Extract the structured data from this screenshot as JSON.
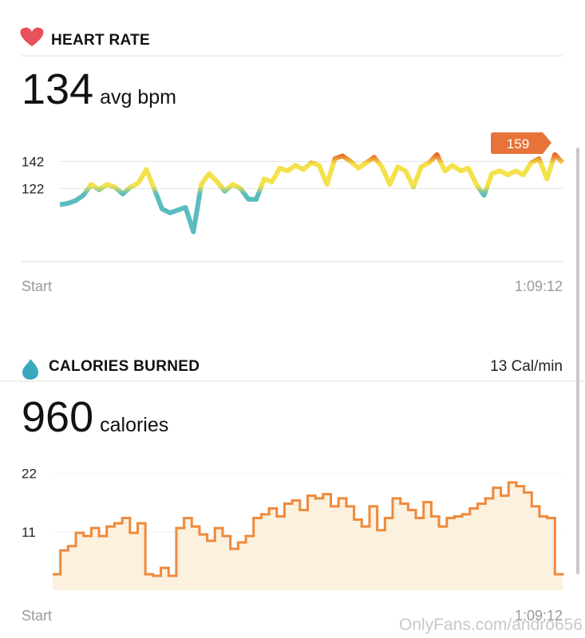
{
  "chart_data": [
    {
      "type": "line",
      "title": "HEART RATE",
      "summary_value": "134",
      "summary_unit": "avg bpm",
      "max_label": "159",
      "x_start_label": "Start",
      "x_end_label": "1:09:12",
      "values": [
        110,
        111,
        113,
        117,
        125,
        121,
        125,
        123,
        118,
        123,
        126,
        136,
        122,
        107,
        104,
        106,
        108,
        90,
        125,
        133,
        127,
        120,
        125,
        122,
        114,
        114,
        129,
        127,
        137,
        135,
        139,
        136,
        141,
        139,
        125,
        144,
        146,
        142,
        137,
        141,
        145,
        138,
        125,
        138,
        135,
        123,
        138,
        141,
        147,
        135,
        139,
        135,
        137,
        125,
        117,
        133,
        135,
        132,
        135,
        132,
        141,
        144,
        129,
        147,
        141
      ],
      "ylim": [
        68,
        164
      ],
      "yticks": [
        142,
        122
      ],
      "color_scale": [
        {
          "value": 100,
          "color": "#5bbcc0"
        },
        {
          "value": 118,
          "color": "#5bbcc0"
        },
        {
          "value": 124,
          "color": "#f3e24a"
        },
        {
          "value": 140,
          "color": "#f3e24a"
        },
        {
          "value": 147,
          "color": "#e8672a"
        }
      ]
    },
    {
      "type": "step",
      "title": "CALORIES BURNED",
      "rate": "13 Cal/min",
      "summary_value": "960",
      "summary_unit": "calories",
      "x_start_label": "Start",
      "x_end_label": "1:09:12",
      "values": [
        3,
        7.5,
        8.3,
        10.8,
        10.2,
        11.7,
        10.2,
        12,
        12.6,
        13.6,
        10.8,
        12.6,
        3,
        2.7,
        4.2,
        2.7,
        11.7,
        13.6,
        12,
        10.5,
        9.3,
        11.7,
        10.2,
        7.8,
        9,
        10.2,
        13.6,
        14.3,
        15.4,
        13.9,
        16.3,
        16.9,
        15.1,
        17.8,
        17.3,
        18.1,
        15.8,
        17.3,
        15.8,
        13.3,
        12,
        15.8,
        11.3,
        13.6,
        17.3,
        16.3,
        15.1,
        13.6,
        16.6,
        13.9,
        12,
        13.6,
        13.9,
        14.3,
        15.4,
        16.3,
        17.3,
        19.3,
        17.8,
        20.3,
        19.6,
        18.4,
        15.8,
        13.9,
        13.6,
        3
      ],
      "ylim": [
        0,
        23
      ],
      "yticks": [
        22,
        11
      ],
      "color": "#ee8a3c",
      "fill": "#fcf0de"
    }
  ],
  "watermark": "OnlyFans.com/andro656"
}
